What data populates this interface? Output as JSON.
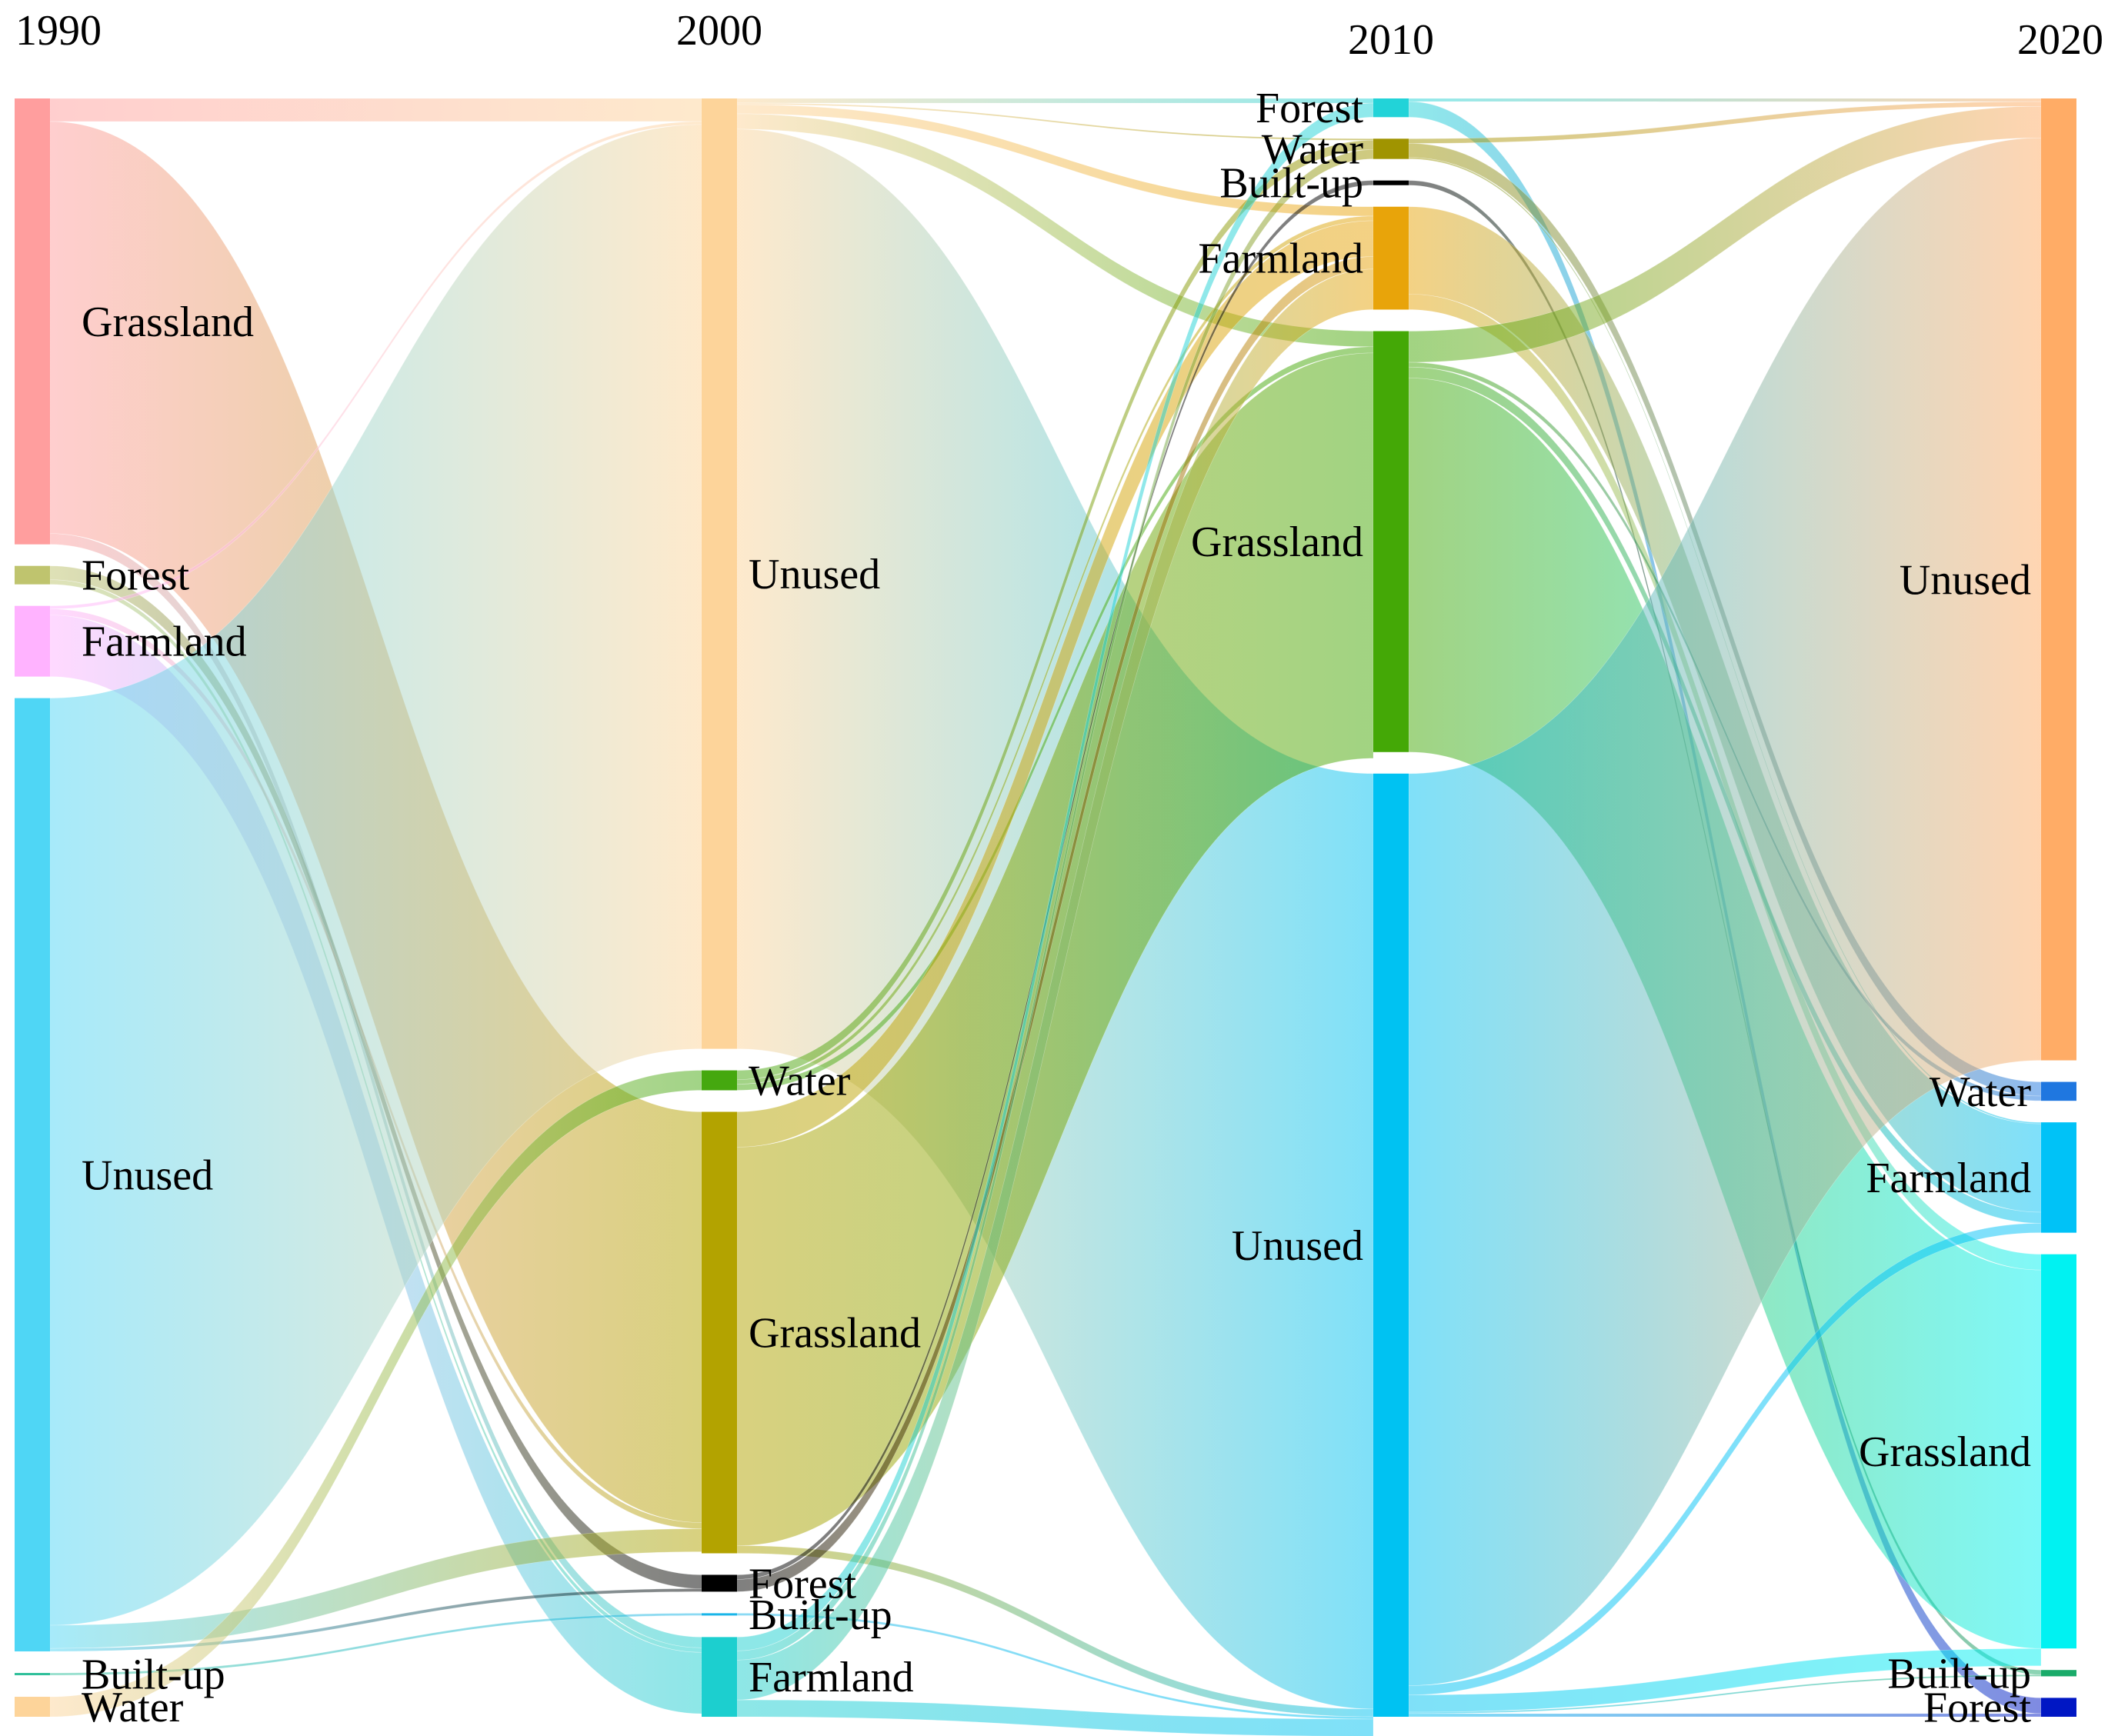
{
  "chart_data": {
    "type": "sankey",
    "title": "",
    "stages": [
      "1990",
      "2000",
      "2010",
      "2020"
    ],
    "nodes": [
      [
        {
          "name": "Grassland",
          "value": 29.0,
          "color": "#ff9e9e"
        },
        {
          "name": "Forest",
          "value": 1.2,
          "color": "#bfc46e"
        },
        {
          "name": "Farmland",
          "value": 4.6,
          "color": "#ffb3ff"
        },
        {
          "name": "Unused",
          "value": 62.0,
          "color": "#4fd6f5"
        },
        {
          "name": "Built-up",
          "value": 0.15,
          "color": "#2fbf9a"
        },
        {
          "name": "Water",
          "value": 1.3,
          "color": "#fdd49a"
        }
      ],
      [
        {
          "name": "Unused",
          "value": 62.0,
          "color": "#fdd49a"
        },
        {
          "name": "Water",
          "value": 1.3,
          "color": "#45a80f"
        },
        {
          "name": "Grassland",
          "value": 28.8,
          "color": "#b3a300"
        },
        {
          "name": "Forest",
          "value": 1.1,
          "color": "#000000"
        },
        {
          "name": "Built-up",
          "value": 0.15,
          "color": "#19b5e8"
        },
        {
          "name": "Farmland",
          "value": 5.2,
          "color": "#1ccfcf"
        }
      ],
      [
        {
          "name": "Forest",
          "value": 1.2,
          "color": "#22d3d8"
        },
        {
          "name": "Water",
          "value": 1.3,
          "color": "#a09400"
        },
        {
          "name": "Built-up",
          "value": 0.3,
          "color": "#000000"
        },
        {
          "name": "Farmland",
          "value": 6.6,
          "color": "#e8a40a"
        },
        {
          "name": "Grassland",
          "value": 27.0,
          "color": "#44a806"
        },
        {
          "name": "Unused",
          "value": 60.5,
          "color": "#00c2f2"
        }
      ],
      [
        {
          "name": "Unused",
          "value": 61.0,
          "color": "#ffac66"
        },
        {
          "name": "Water",
          "value": 1.2,
          "color": "#1f77e0"
        },
        {
          "name": "Farmland",
          "value": 7.0,
          "color": "#00c2f7"
        },
        {
          "name": "Grassland",
          "value": 25.0,
          "color": "#00f2f2"
        },
        {
          "name": "Built-up",
          "value": 0.4,
          "color": "#1aab6a"
        },
        {
          "name": "Forest",
          "value": 1.2,
          "color": "#0017c4"
        }
      ]
    ],
    "links": [
      [
        {
          "source": "Grassland",
          "target": "Unused",
          "value": 1.5
        },
        {
          "source": "Grassland",
          "target": "Grassland",
          "value": 26.8
        },
        {
          "source": "Grassland",
          "target": "Farmland",
          "value": 0.7
        },
        {
          "source": "Forest",
          "target": "Forest",
          "value": 0.9
        },
        {
          "source": "Forest",
          "target": "Farmland",
          "value": 0.3
        },
        {
          "source": "Farmland",
          "target": "Unused",
          "value": 0.2
        },
        {
          "source": "Farmland",
          "target": "Grassland",
          "value": 0.4
        },
        {
          "source": "Farmland",
          "target": "Farmland",
          "value": 4.0
        },
        {
          "source": "Unused",
          "target": "Unused",
          "value": 60.3
        },
        {
          "source": "Unused",
          "target": "Forest",
          "value": 0.2
        },
        {
          "source": "Unused",
          "target": "Grassland",
          "value": 1.5
        },
        {
          "source": "Built-up",
          "target": "Built-up",
          "value": 0.15
        },
        {
          "source": "Water",
          "target": "Water",
          "value": 1.3
        }
      ],
      [
        {
          "source": "Unused",
          "target": "Forest",
          "value": 0.3
        },
        {
          "source": "Unused",
          "target": "Water",
          "value": 0.1
        },
        {
          "source": "Unused",
          "target": "Farmland",
          "value": 0.6
        },
        {
          "source": "Unused",
          "target": "Grassland",
          "value": 1.0
        },
        {
          "source": "Unused",
          "target": "Unused",
          "value": 60.0
        },
        {
          "source": "Water",
          "target": "Water",
          "value": 0.6
        },
        {
          "source": "Water",
          "target": "Farmland",
          "value": 0.3
        },
        {
          "source": "Water",
          "target": "Grassland",
          "value": 0.4
        },
        {
          "source": "Grassland",
          "target": "Grassland",
          "value": 26.0
        },
        {
          "source": "Grassland",
          "target": "Farmland",
          "value": 2.3
        },
        {
          "source": "Grassland",
          "target": "Unused",
          "value": 0.5
        },
        {
          "source": "Forest",
          "target": "Built-up",
          "value": 0.3
        },
        {
          "source": "Forest",
          "target": "Farmland",
          "value": 0.8
        },
        {
          "source": "Built-up",
          "target": "Unused",
          "value": 0.15
        },
        {
          "source": "Farmland",
          "target": "Forest",
          "value": 0.9
        },
        {
          "source": "Farmland",
          "target": "Water",
          "value": 0.6
        },
        {
          "source": "Farmland",
          "target": "Farmland",
          "value": 2.6
        },
        {
          "source": "Farmland",
          "target": "Unused",
          "value": 1.1
        }
      ],
      [
        {
          "source": "Forest",
          "target": "Unused",
          "value": 0.2
        },
        {
          "source": "Forest",
          "target": "Forest",
          "value": 1.0
        },
        {
          "source": "Water",
          "target": "Unused",
          "value": 0.3
        },
        {
          "source": "Water",
          "target": "Water",
          "value": 0.9
        },
        {
          "source": "Water",
          "target": "Farmland",
          "value": 0.1
        },
        {
          "source": "Built-up",
          "target": "Built-up",
          "value": 0.3
        },
        {
          "source": "Farmland",
          "target": "Farmland",
          "value": 5.6
        },
        {
          "source": "Farmland",
          "target": "Grassland",
          "value": 1.0
        },
        {
          "source": "Grassland",
          "target": "Unused",
          "value": 2.0
        },
        {
          "source": "Grassland",
          "target": "Grassland",
          "value": 24.0
        },
        {
          "source": "Grassland",
          "target": "Water",
          "value": 0.3
        },
        {
          "source": "Grassland",
          "target": "Farmland",
          "value": 0.7
        },
        {
          "source": "Unused",
          "target": "Unused",
          "value": 58.5
        },
        {
          "source": "Unused",
          "target": "Farmland",
          "value": 0.6
        },
        {
          "source": "Unused",
          "target": "Built-up",
          "value": 0.1
        },
        {
          "source": "Unused",
          "target": "Forest",
          "value": 0.2
        },
        {
          "source": "Unused",
          "target": "Grassland",
          "value": 1.1
        }
      ]
    ]
  }
}
